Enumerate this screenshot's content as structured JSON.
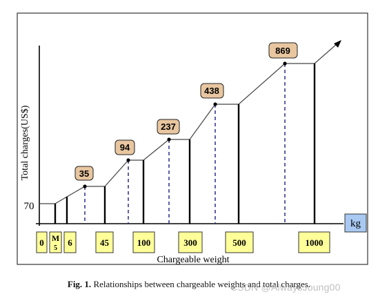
{
  "diagram": {
    "y_axis_label": "Total charges(US$)",
    "y_tick_label": "70",
    "x_axis_label": "Chargeable weight",
    "unit_label": "kg",
    "weight_boxes": [
      {
        "label": "0"
      },
      {
        "label": "M",
        "sub": "5"
      },
      {
        "label": "6"
      },
      {
        "label": "45"
      },
      {
        "label": "100"
      },
      {
        "label": "300"
      },
      {
        "label": "500"
      },
      {
        "label": "1000"
      }
    ],
    "charge_badges": [
      "35",
      "94",
      "237",
      "438",
      "869"
    ]
  },
  "caption": {
    "fig_label": "Fig. 1.",
    "text": "Relationships between chargeable weights and total charges."
  },
  "watermark": "CSDN @AlwaysJoung00",
  "colors": {
    "box_fill": "#ffff99",
    "badge_fill": "#e8c6a0",
    "unit_fill": "#a9c9f2",
    "dashed_line": "#2a2a8a",
    "frame": "#333333"
  }
}
